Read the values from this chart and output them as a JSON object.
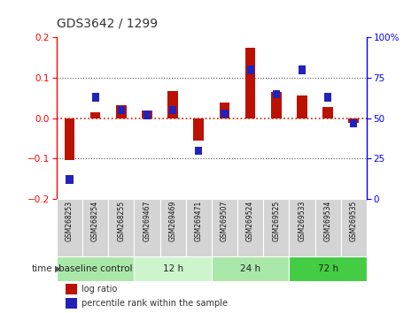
{
  "title": "GDS3642 / 1299",
  "samples": [
    "GSM268253",
    "GSM268254",
    "GSM268255",
    "GSM269467",
    "GSM269469",
    "GSM269471",
    "GSM269507",
    "GSM269524",
    "GSM269525",
    "GSM269533",
    "GSM269534",
    "GSM269535"
  ],
  "log_ratio": [
    -0.103,
    0.015,
    0.032,
    0.018,
    0.068,
    -0.055,
    0.038,
    0.175,
    0.065,
    0.057,
    0.028,
    -0.012
  ],
  "percentile_rank": [
    12,
    63,
    55,
    52,
    55,
    30,
    53,
    80,
    65,
    80,
    63,
    47
  ],
  "groups": [
    {
      "label": "baseline control",
      "start": 0,
      "end": 3,
      "color": "#aae8aa"
    },
    {
      "label": "12 h",
      "start": 3,
      "end": 6,
      "color": "#ccf5cc"
    },
    {
      "label": "24 h",
      "start": 6,
      "end": 9,
      "color": "#aae8aa"
    },
    {
      "label": "72 h",
      "start": 9,
      "end": 12,
      "color": "#44cc44"
    }
  ],
  "ylim_left": [
    -0.2,
    0.2
  ],
  "ylim_right": [
    0,
    100
  ],
  "yticks_left": [
    -0.2,
    -0.1,
    0.0,
    0.1,
    0.2
  ],
  "yticks_right": [
    0,
    25,
    50,
    75,
    100
  ],
  "bar_color_red": "#bb1100",
  "bar_color_blue": "#2222bb",
  "dotted_line_color": "#555555",
  "zero_line_color": "#cc2200",
  "background_color": "#ffffff",
  "sample_bg_color": "#d4d4d4",
  "time_label": "time"
}
